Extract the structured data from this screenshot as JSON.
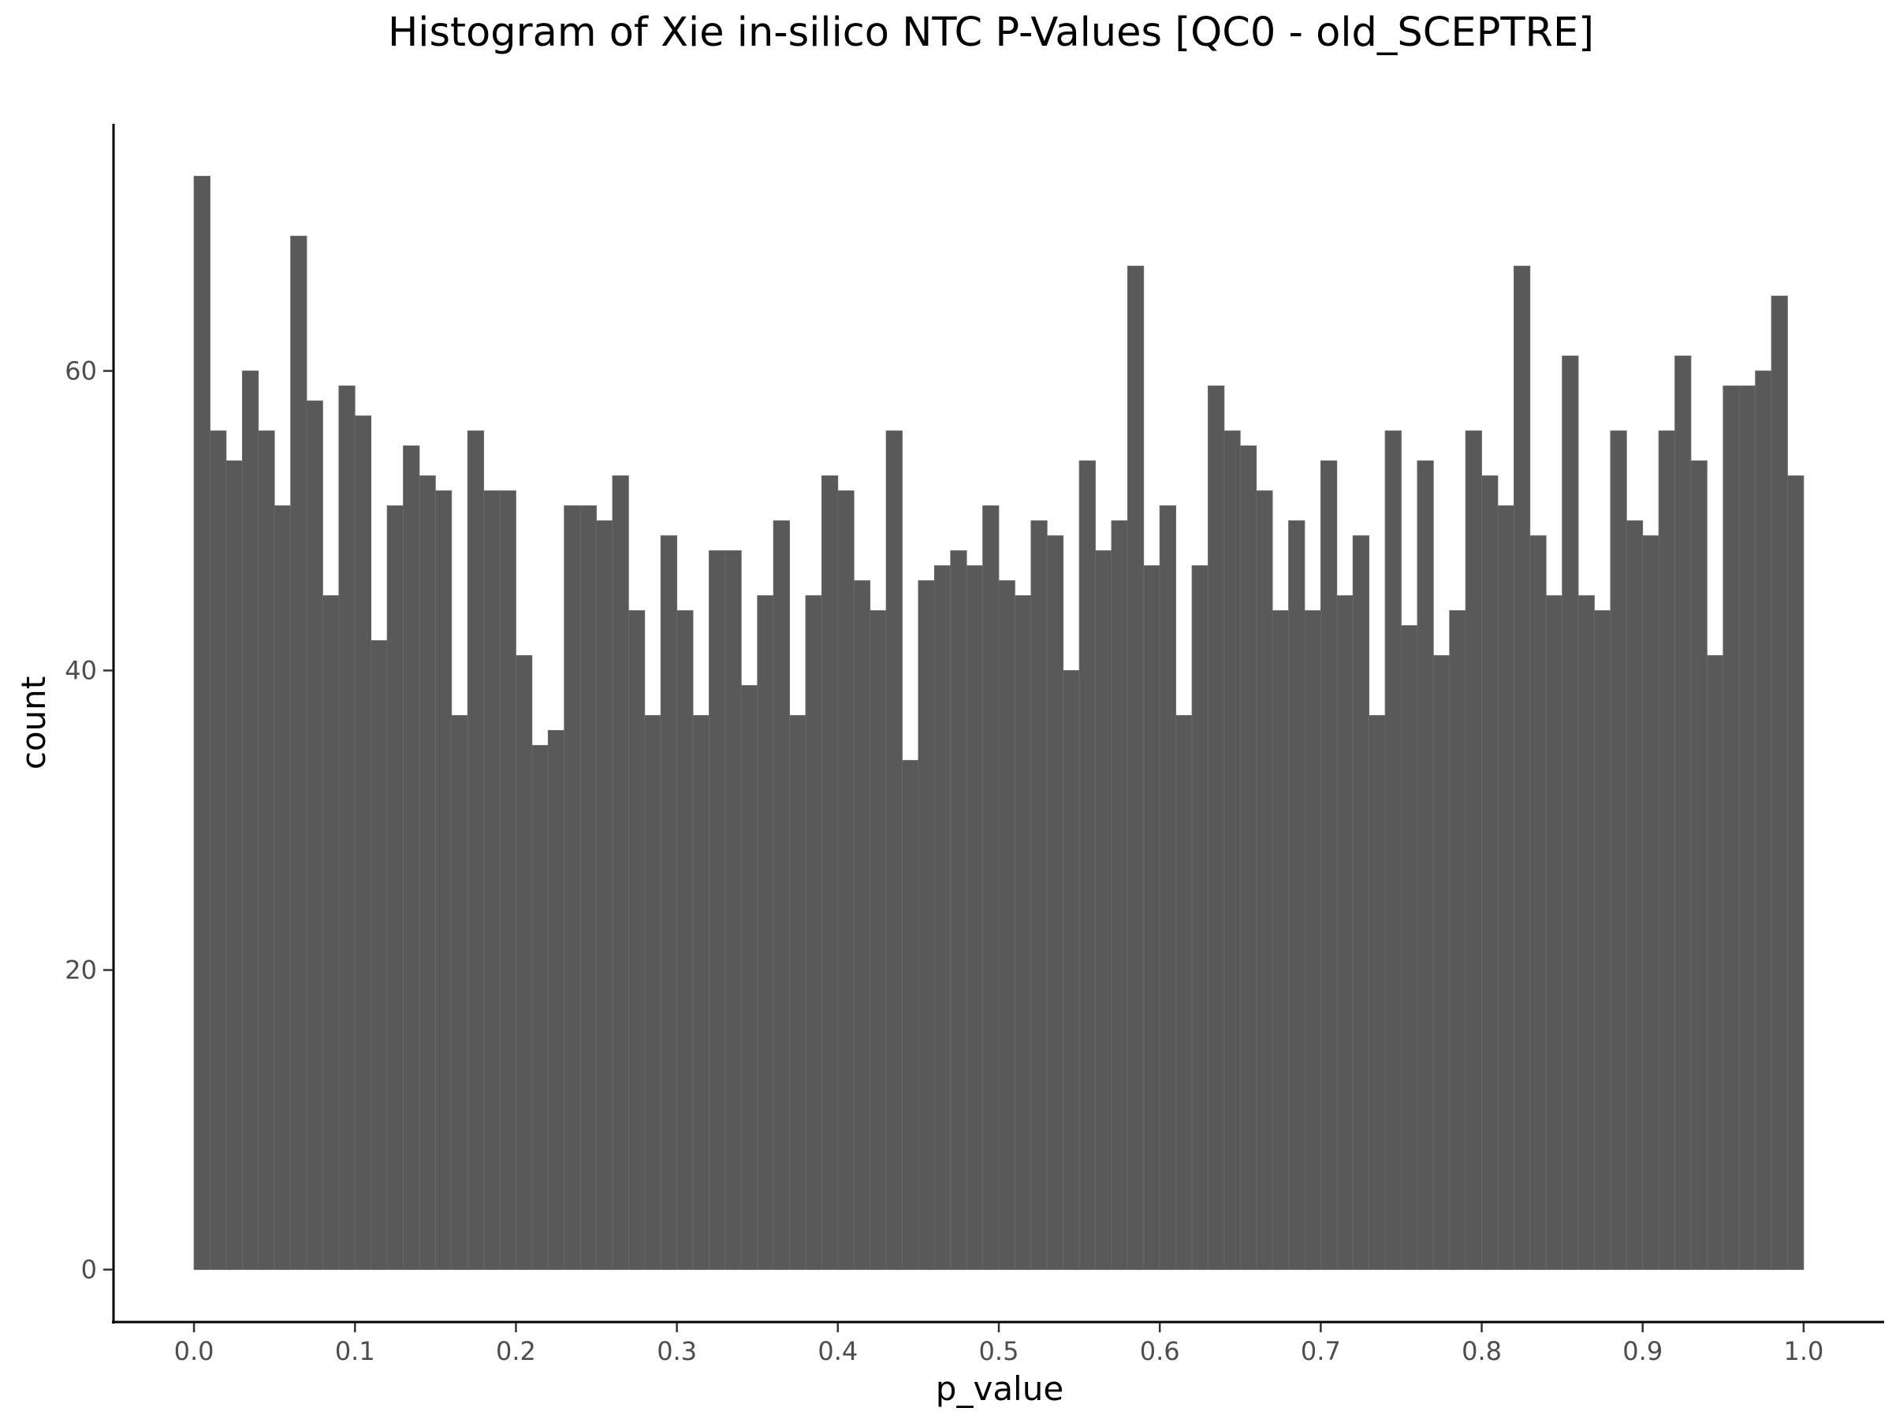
{
  "chart_data": {
    "type": "bar",
    "title": "Histogram of Xie in-silico NTC P-Values [QC0 - old_SCEPTRE]",
    "xlabel": "p_value",
    "ylabel": "count",
    "xlim": [
      -0.05,
      1.05
    ],
    "ylim": [
      -3.5,
      76.5
    ],
    "xticks": [
      0.0,
      0.1,
      0.2,
      0.3,
      0.4,
      0.5,
      0.6,
      0.7,
      0.8,
      0.9,
      1.0
    ],
    "xtick_labels": [
      "0.0",
      "0.1",
      "0.2",
      "0.3",
      "0.4",
      "0.5",
      "0.6",
      "0.7",
      "0.8",
      "0.9",
      "1.0"
    ],
    "yticks": [
      0,
      20,
      40,
      60
    ],
    "ytick_labels": [
      "0",
      "20",
      "40",
      "60"
    ],
    "grid": false,
    "bin_range": [
      0.0,
      1.0
    ],
    "bin_width": 0.01,
    "bar_color": "#595959",
    "bar_edge_color": "#6a6a6a",
    "values": [
      73,
      56,
      54,
      60,
      56,
      51,
      69,
      58,
      45,
      59,
      57,
      42,
      51,
      55,
      53,
      52,
      37,
      56,
      52,
      52,
      41,
      35,
      36,
      51,
      51,
      50,
      53,
      44,
      37,
      49,
      44,
      37,
      48,
      48,
      39,
      45,
      50,
      37,
      45,
      53,
      52,
      46,
      44,
      56,
      34,
      46,
      47,
      48,
      47,
      51,
      46,
      45,
      50,
      49,
      40,
      54,
      48,
      50,
      67,
      47,
      51,
      37,
      47,
      59,
      56,
      55,
      52,
      44,
      50,
      44,
      54,
      45,
      49,
      37,
      56,
      43,
      54,
      41,
      44,
      56,
      53,
      51,
      67,
      49,
      45,
      61,
      45,
      44,
      56,
      50,
      49,
      56,
      61,
      54,
      41,
      59,
      59,
      60,
      65,
      53
    ]
  }
}
